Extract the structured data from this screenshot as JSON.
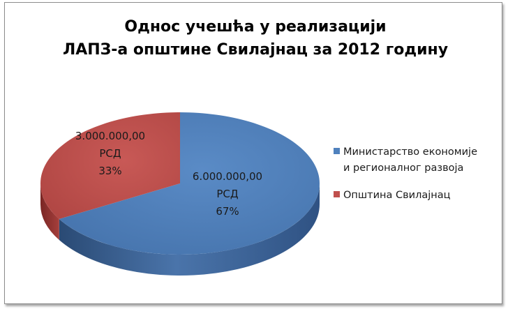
{
  "chart_data": {
    "type": "pie",
    "title": [
      "Однос учешћа у реализацији",
      "ЛАПЗ-а општине Свилајнац за 2012 годину"
    ],
    "slices": [
      {
        "name": "Министарство економије и регионалног развоја",
        "legend_lines": [
          "Министарство економије",
          "и регионалног развоја"
        ],
        "value": 6000000,
        "percent": 67,
        "label_lines": [
          "6.000.000,00",
          "РСД",
          "67%"
        ],
        "color": "#4f81bd",
        "side_color": "#33598a"
      },
      {
        "name": "Општина Свилајнац",
        "legend_lines": [
          "Општина Свилајнац"
        ],
        "value": 3000000,
        "percent": 33,
        "label_lines": [
          "3.000.000,00",
          "РСД",
          "33%"
        ],
        "color": "#c0504d",
        "side_color": "#8a2e2b"
      }
    ],
    "legend_position": "right",
    "style": "3d-pie"
  }
}
